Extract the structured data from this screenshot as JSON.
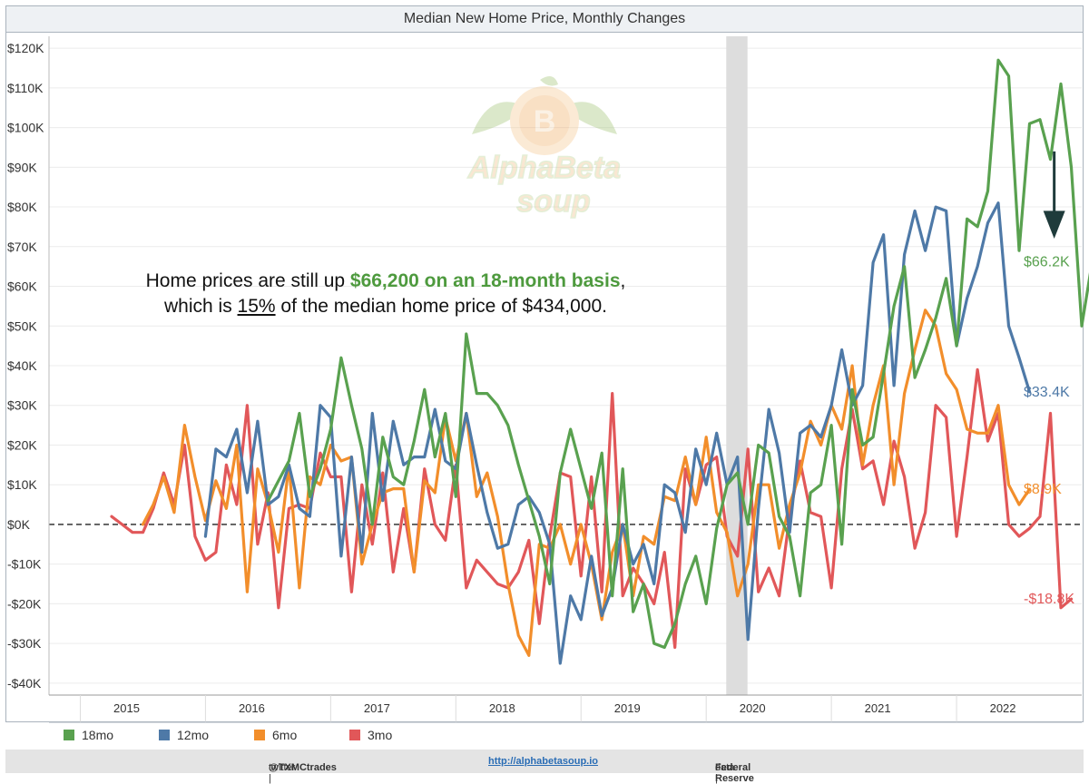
{
  "title": "Median New Home Price, Monthly Changes",
  "annotation": {
    "pre": "Home prices are still up ",
    "highlight": "$66,200 on an 18-month basis",
    "post": ",",
    "line2_pre": "which is ",
    "line2_pct": "15%",
    "line2_post": " of the median home price of $434,000."
  },
  "watermark": {
    "line1": "AlphaBeta",
    "line2": "soup",
    "coin": "B"
  },
  "legend": [
    {
      "name": "18mo",
      "color": "#59a14f"
    },
    {
      "name": "12mo",
      "color": "#4e79a7"
    },
    {
      "name": "6mo",
      "color": "#f28e2b"
    },
    {
      "name": "3mo",
      "color": "#e15759"
    }
  ],
  "footer": {
    "twitter_label": "twitter | ",
    "twitter_handle": "@TXMCtrades",
    "link": "http://alphabetasoup.io",
    "data_label": "data | ",
    "data_source": "Federal Reserve"
  },
  "chart_data": {
    "type": "line",
    "ylim": [
      -43,
      123
    ],
    "yticks": [
      -40,
      -30,
      -20,
      -10,
      0,
      10,
      20,
      30,
      40,
      50,
      60,
      70,
      80,
      90,
      100,
      110,
      120
    ],
    "ytick_labels": [
      "-$40K",
      "-$30K",
      "-$20K",
      "-$10K",
      "$0K",
      "$10K",
      "$20K",
      "$30K",
      "$40K",
      "$50K",
      "$60K",
      "$70K",
      "$80K",
      "$90K",
      "$100K",
      "$110K",
      "$120K"
    ],
    "xlim": [
      2014.75,
      2023.0
    ],
    "xticks": [
      2015,
      2016,
      2017,
      2018,
      2019,
      2020,
      2021,
      2022
    ],
    "xtick_labels": [
      "2015",
      "2016",
      "2017",
      "2018",
      "2019",
      "2020",
      "2021",
      "2022"
    ],
    "recession": [
      2020.16,
      2020.33
    ],
    "zero_line": true,
    "down_arrow_x": 2022.78,
    "series": [
      {
        "name": "18mo",
        "color": "#59a14f",
        "end_label": "$66.2K",
        "start": 2016.5,
        "values": [
          6,
          11,
          16,
          28,
          7,
          14,
          24,
          42,
          30,
          19,
          0,
          22,
          12,
          10,
          21,
          34,
          17,
          28,
          7,
          48,
          33,
          33,
          30,
          25,
          15,
          6,
          -3,
          -15,
          13,
          24,
          14,
          4,
          18,
          -18,
          14,
          -22,
          -15,
          -30,
          -31,
          -25,
          -15,
          -8,
          -20,
          -1,
          10,
          13,
          0,
          20,
          18,
          2,
          -3,
          -18,
          8,
          10,
          25,
          -5,
          34,
          20,
          22,
          38,
          55,
          65,
          37,
          44,
          52,
          62,
          45,
          77,
          75,
          84,
          117,
          113,
          69,
          101,
          102,
          92,
          111,
          90,
          50,
          66.2
        ]
      },
      {
        "name": "12mo",
        "color": "#4e79a7",
        "end_label": "$33.4K",
        "start": 2016.0,
        "values": [
          -3,
          19,
          17,
          24,
          8,
          26,
          5,
          7,
          15,
          4,
          2,
          30,
          27,
          -8,
          17,
          -7,
          28,
          6,
          26,
          15,
          17,
          17,
          29,
          16,
          14,
          28,
          15,
          3,
          -6,
          -5,
          5,
          7,
          3,
          -5,
          -35,
          -18,
          -24,
          -8,
          -23,
          -16,
          0,
          -10,
          -5,
          -15,
          10,
          8,
          -2,
          19,
          10,
          23,
          10,
          17,
          -29,
          4,
          29,
          18,
          -2,
          23,
          25,
          22,
          30,
          44,
          30,
          35,
          66,
          73,
          35,
          68,
          79,
          69,
          80,
          79,
          45,
          57,
          65,
          76,
          81,
          50,
          42,
          33.4
        ]
      },
      {
        "name": "6mo",
        "color": "#f28e2b",
        "end_label": "$8.9K",
        "start": 2015.5,
        "values": [
          0,
          5,
          12,
          3,
          25,
          12,
          1,
          11,
          4,
          20,
          -17,
          14,
          5,
          -7,
          15,
          -16,
          12,
          10,
          20,
          16,
          17,
          -10,
          0,
          8,
          9,
          9,
          -12,
          11,
          8,
          27,
          16,
          28,
          7,
          13,
          2,
          -15,
          -28,
          -33,
          -5,
          -6,
          0,
          -10,
          0,
          -10,
          -24,
          -7,
          0,
          -18,
          -3,
          -5,
          7,
          6,
          17,
          5,
          22,
          3,
          -2,
          -18,
          -10,
          10,
          10,
          -6,
          5,
          13,
          26,
          20,
          30,
          24,
          40,
          15,
          30,
          40,
          10,
          33,
          44,
          54,
          50,
          38,
          34,
          24,
          23,
          23,
          30,
          10,
          5,
          8.9
        ]
      },
      {
        "name": "3mo",
        "color": "#e15759",
        "end_label": "-$18.8K",
        "start": 2015.25,
        "values": [
          2,
          0,
          -2,
          -2,
          4,
          13,
          5,
          20,
          -3,
          -9,
          -7,
          15,
          5,
          30,
          -5,
          8,
          -21,
          4,
          5,
          4,
          18,
          12,
          12,
          -17,
          10,
          -5,
          13,
          -12,
          4,
          -12,
          14,
          0,
          -4,
          15,
          -16,
          -9,
          -12,
          -15,
          -16,
          -12,
          -4,
          -25,
          -3,
          13,
          12,
          -13,
          12,
          -17,
          33,
          -18,
          -11,
          -15,
          -20,
          -7,
          -31,
          14,
          5,
          15,
          17,
          -3,
          -8,
          19,
          -17,
          -11,
          -18,
          2,
          16,
          3,
          2,
          -16,
          14,
          29,
          14,
          16,
          5,
          21,
          12,
          -6,
          3,
          30,
          27,
          -3,
          17,
          39,
          21,
          28,
          0,
          -3,
          -1,
          2,
          28,
          -21,
          -18.8
        ]
      }
    ]
  }
}
